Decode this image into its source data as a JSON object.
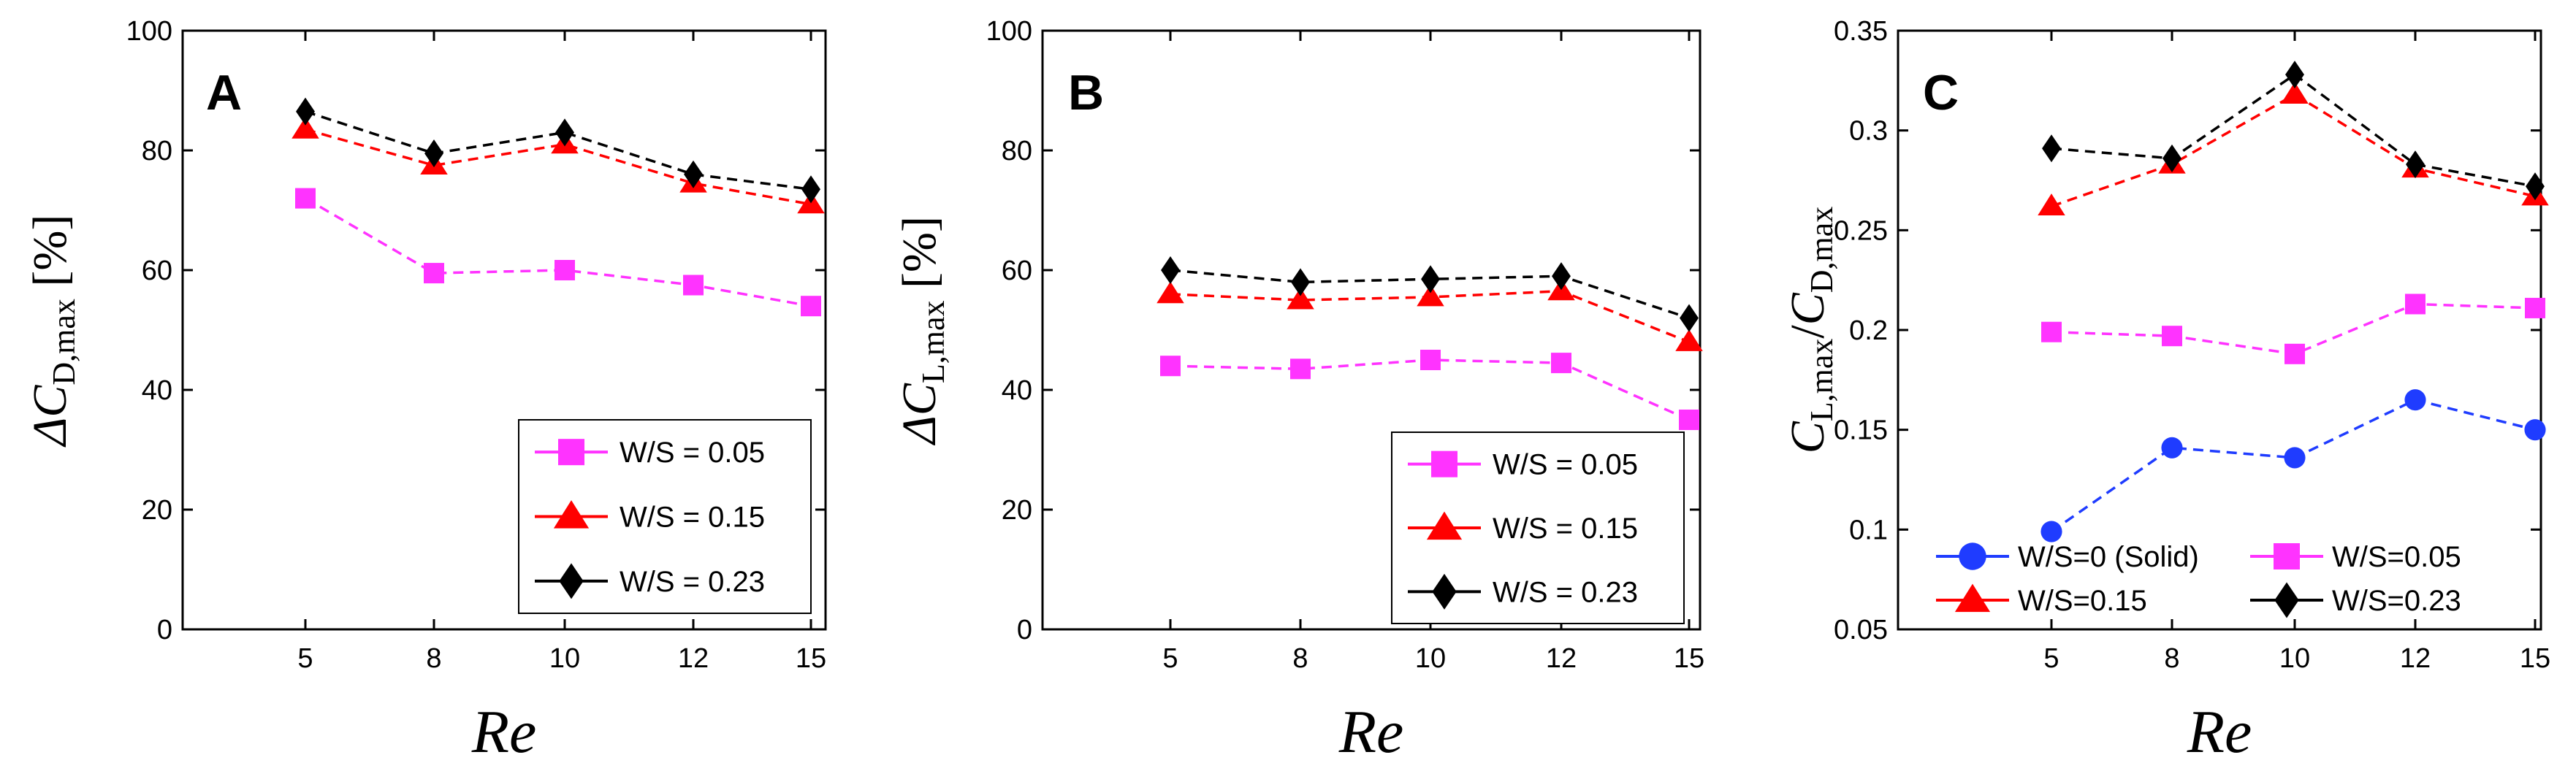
{
  "chart_data": [
    {
      "type": "line",
      "panel_label": "A",
      "xlabel": "Re",
      "ylabel": "ΔC_{D,max} [%]",
      "ylabel_parts": {
        "main": "ΔC",
        "sub": "D,max",
        "unit": " [%]"
      },
      "x": [
        5,
        8,
        10,
        12,
        15
      ],
      "xticks": [
        "5",
        "8",
        "10",
        "12",
        "15"
      ],
      "ylim": [
        0,
        100
      ],
      "yticks": [
        "0",
        "20",
        "40",
        "60",
        "80",
        "100"
      ],
      "legend_position": "bottom-right",
      "series": [
        {
          "name": "W/S = 0.05",
          "color": "#ff33ff",
          "marker": "square",
          "values": [
            72,
            59.5,
            60,
            57.5,
            54
          ]
        },
        {
          "name": "W/S = 0.15",
          "color": "#ff0000",
          "marker": "triangle",
          "values": [
            83.5,
            77.5,
            81,
            74.5,
            71
          ]
        },
        {
          "name": "W/S = 0.23",
          "color": "#000000",
          "marker": "diamond",
          "values": [
            86.5,
            79.5,
            83,
            76,
            73.5
          ]
        }
      ]
    },
    {
      "type": "line",
      "panel_label": "B",
      "xlabel": "Re",
      "ylabel": "ΔC_{L,max} [%]",
      "ylabel_parts": {
        "main": "ΔC",
        "sub": "L,max",
        "unit": " [%]"
      },
      "x": [
        5,
        8,
        10,
        12,
        15
      ],
      "xticks": [
        "5",
        "8",
        "10",
        "12",
        "15"
      ],
      "ylim": [
        0,
        100
      ],
      "yticks": [
        "0",
        "20",
        "40",
        "60",
        "80",
        "100"
      ],
      "legend_position": "bottom-right",
      "series": [
        {
          "name": "W/S = 0.05",
          "color": "#ff33ff",
          "marker": "square",
          "values": [
            44,
            43.5,
            45,
            44.5,
            35
          ]
        },
        {
          "name": "W/S = 0.15",
          "color": "#ff0000",
          "marker": "triangle",
          "values": [
            56,
            55,
            55.5,
            56.5,
            48
          ]
        },
        {
          "name": "W/S = 0.23",
          "color": "#000000",
          "marker": "diamond",
          "values": [
            60,
            58,
            58.5,
            59,
            52
          ]
        }
      ]
    },
    {
      "type": "line",
      "panel_label": "C",
      "xlabel": "Re",
      "ylabel": "C_{L,max}/C_{D,max}",
      "ylabel_parts": {
        "c1": "C",
        "s1": "L,max",
        "slash": "/",
        "c2": "C",
        "s2": "D,max"
      },
      "x": [
        5,
        8,
        10,
        12,
        15
      ],
      "xticks": [
        "5",
        "8",
        "10",
        "12",
        "15"
      ],
      "ylim": [
        0.05,
        0.35
      ],
      "yticks": [
        "0.05",
        "0.1",
        "0.15",
        "0.2",
        "0.25",
        "0.3",
        "0.35"
      ],
      "legend_position": "bottom",
      "series": [
        {
          "name": "W/S=0 (Solid)",
          "color": "#1f3cff",
          "marker": "circle",
          "values": [
            0.099,
            0.141,
            0.136,
            0.165,
            0.15
          ]
        },
        {
          "name": "W/S=0.05",
          "color": "#ff33ff",
          "marker": "square",
          "values": [
            0.199,
            0.197,
            0.188,
            0.213,
            0.211
          ]
        },
        {
          "name": "W/S=0.15",
          "color": "#ff0000",
          "marker": "triangle",
          "values": [
            0.262,
            0.283,
            0.318,
            0.281,
            0.267
          ]
        },
        {
          "name": "W/S=0.23",
          "color": "#000000",
          "marker": "diamond",
          "values": [
            0.291,
            0.286,
            0.328,
            0.283,
            0.272
          ]
        }
      ]
    }
  ]
}
